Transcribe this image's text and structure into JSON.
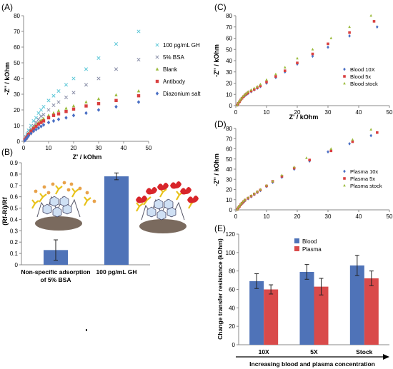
{
  "panels": {
    "A": "(A)",
    "B": "(B)",
    "C": "(C)",
    "D": "(D)",
    "E": "(E)"
  },
  "colors": {
    "blue": "#4a6fc4",
    "red": "#d94040",
    "green": "#9bbb3c",
    "gray": "#8a8fa8",
    "cyan": "#5ec8d8",
    "bar_blue": "#4f73b8",
    "bar_red": "#d94a4a"
  },
  "chart_data": [
    {
      "id": "A",
      "type": "scatter",
      "xlabel": "Z' / kOhm",
      "ylabel": "-Z'' / kOhm",
      "xlim": [
        0,
        50
      ],
      "ylim": [
        0,
        80
      ],
      "xticks": [
        "0",
        "10",
        "20",
        "30",
        "40",
        "50"
      ],
      "yticks": [
        "0",
        "10",
        "20",
        "30",
        "40",
        "50",
        "60",
        "70",
        "80"
      ],
      "legend_position": "right",
      "series": [
        {
          "name": "100 pg/mL GH",
          "marker": "x",
          "color": "#5ec8d8",
          "x": [
            0.5,
            1,
            1.5,
            2,
            3,
            4,
            5,
            6,
            7,
            8,
            10,
            12,
            14,
            17,
            20,
            25,
            30,
            37,
            46
          ],
          "y": [
            1,
            3,
            5,
            7,
            10,
            13,
            15,
            18,
            20,
            22,
            26,
            29,
            32,
            36,
            40,
            46,
            53,
            62,
            70
          ]
        },
        {
          "name": "5% BSA",
          "marker": "x",
          "color": "#8a8fa8",
          "x": [
            0.5,
            1,
            1.5,
            2,
            3,
            4,
            5,
            6,
            7,
            8,
            10,
            12,
            14,
            17,
            20,
            25,
            30,
            37,
            46
          ],
          "y": [
            1,
            2.5,
            4,
            5.5,
            8,
            10,
            12,
            14,
            16,
            17,
            20,
            23,
            25,
            28,
            31,
            36,
            40,
            46,
            52
          ]
        },
        {
          "name": "Blank",
          "marker": "triangle",
          "color": "#9bbb3c",
          "x": [
            0.5,
            1,
            1.5,
            2,
            3,
            4,
            5,
            6,
            7,
            8,
            10,
            12,
            14,
            17,
            20,
            25,
            30,
            37,
            46
          ],
          "y": [
            1,
            2,
            3.5,
            5,
            7,
            9,
            10.5,
            12,
            13.5,
            14.5,
            16.5,
            18,
            19.5,
            21,
            22.5,
            25,
            27,
            29.5,
            32
          ]
        },
        {
          "name": "Antibody",
          "marker": "square",
          "color": "#d94040",
          "x": [
            0.5,
            1,
            1.5,
            2,
            3,
            4,
            5,
            6,
            7,
            8,
            10,
            12,
            14,
            17,
            20,
            25,
            30,
            37,
            46
          ],
          "y": [
            1,
            2,
            3,
            4.5,
            6.5,
            8,
            9.5,
            11,
            12,
            13,
            15,
            16.5,
            17.5,
            19,
            20.5,
            22.5,
            24,
            26,
            29
          ]
        },
        {
          "name": "Diazonium salt",
          "marker": "diamond",
          "color": "#4a6fc4",
          "x": [
            0.5,
            1,
            1.5,
            2,
            3,
            4,
            5,
            6,
            7,
            8,
            10,
            12,
            14,
            17,
            20,
            25,
            30,
            37,
            46
          ],
          "y": [
            0.5,
            1.5,
            2.5,
            3.5,
            5,
            6.5,
            7.5,
            8.5,
            9.5,
            10.5,
            12,
            13,
            14,
            15,
            16.5,
            18,
            20,
            22,
            25
          ]
        }
      ]
    },
    {
      "id": "B",
      "type": "bar",
      "ylabel": "(Rf-Ri)/Rf",
      "ylim": [
        0,
        0.9
      ],
      "yticks": [
        "0",
        "0.1",
        "0.2",
        "0.3",
        "0.4",
        "0.5",
        "0.6",
        "0.7",
        "0.8",
        "0.9"
      ],
      "categories": [
        "Non-specific adsorption of 5% BSA",
        "100 pg/mL GH"
      ],
      "category_lines": [
        [
          "Non-specific adsorption",
          "of 5% BSA"
        ],
        [
          "100 pg/mL GH"
        ]
      ],
      "values": [
        0.13,
        0.78
      ],
      "errors": [
        0.09,
        0.03
      ]
    },
    {
      "id": "C",
      "type": "scatter",
      "xlabel": "Z' / kOhm",
      "ylabel": "-Z'' / kOhm",
      "xlim": [
        0,
        50
      ],
      "ylim": [
        0,
        80
      ],
      "xticks": [
        "0",
        "10",
        "20",
        "30",
        "40",
        "50"
      ],
      "yticks": [
        "0",
        "10",
        "20",
        "30",
        "40",
        "50",
        "60",
        "70",
        "80"
      ],
      "legend_position": "right",
      "series": [
        {
          "name": "Blood 10X",
          "marker": "diamond",
          "color": "#4a6fc4",
          "x": [
            0.5,
            0.8,
            1.2,
            1.6,
            2,
            2.5,
            3,
            3.5,
            4,
            5,
            6,
            7,
            8,
            10,
            13,
            16,
            20,
            25,
            30,
            37,
            46
          ],
          "y": [
            0.5,
            2,
            3.5,
            5,
            6.5,
            8,
            9,
            10,
            11,
            12.5,
            14,
            15.5,
            17,
            20,
            25,
            30,
            37,
            44,
            52,
            62,
            70
          ]
        },
        {
          "name": "Blood 5x",
          "marker": "square",
          "color": "#d94040",
          "x": [
            0.5,
            0.8,
            1.2,
            1.6,
            2,
            2.5,
            3,
            3.5,
            4,
            5,
            6,
            7,
            8,
            10,
            13,
            16,
            20,
            25,
            30,
            37,
            45
          ],
          "y": [
            0.5,
            2,
            3.5,
            5,
            6.5,
            8,
            9.5,
            10.5,
            11.5,
            13,
            14.5,
            16,
            17.5,
            21,
            26,
            31,
            38,
            46,
            55,
            65,
            75
          ]
        },
        {
          "name": "Blood stock",
          "marker": "triangle",
          "color": "#9bbb3c",
          "x": [
            0.5,
            0.8,
            1.2,
            1.6,
            2,
            2.5,
            3,
            3.5,
            4,
            5,
            6,
            7,
            8,
            10,
            13,
            16,
            20,
            25,
            31,
            37,
            44
          ],
          "y": [
            0.5,
            2.5,
            4,
            5.5,
            7,
            8.5,
            10,
            11,
            12.5,
            14,
            15.5,
            17,
            19,
            23,
            28,
            34,
            42,
            50,
            60,
            70,
            80
          ]
        }
      ]
    },
    {
      "id": "D",
      "type": "scatter",
      "xlabel": "Z' / kOhm",
      "ylabel": "-Z'' / kOhm",
      "xlim": [
        0,
        50
      ],
      "ylim": [
        0,
        80
      ],
      "xticks": [
        "0",
        "10",
        "20",
        "30",
        "40",
        "50"
      ],
      "yticks": [
        "0",
        "10",
        "20",
        "30",
        "40",
        "50",
        "60",
        "70",
        "80"
      ],
      "legend_position": "right",
      "series": [
        {
          "name": "Plasma 10x",
          "marker": "diamond",
          "color": "#4a6fc4",
          "x": [
            0.5,
            0.8,
            1.2,
            1.6,
            2,
            2.5,
            3,
            4,
            5,
            6,
            7,
            8,
            10,
            12,
            15,
            19,
            24,
            30,
            37,
            44
          ],
          "y": [
            0.5,
            2,
            3.5,
            5,
            6,
            7.5,
            9,
            11,
            13,
            15,
            17,
            19,
            23,
            27,
            32,
            40,
            48,
            57,
            65,
            73
          ]
        },
        {
          "name": "Plasma 5x",
          "marker": "square",
          "color": "#d94040",
          "x": [
            0.5,
            0.8,
            1.2,
            1.6,
            2,
            2.5,
            3,
            4,
            5,
            6,
            7,
            8,
            10,
            12,
            15,
            19,
            24,
            31,
            38,
            46
          ],
          "y": [
            0.5,
            2,
            3.5,
            5,
            6.5,
            8,
            9.5,
            11.5,
            13.5,
            15.5,
            17.5,
            19.5,
            23.5,
            28,
            33,
            41,
            49,
            58,
            67,
            76
          ]
        },
        {
          "name": "Plasma stock",
          "marker": "triangle",
          "color": "#9bbb3c",
          "x": [
            0.5,
            0.8,
            1.2,
            1.6,
            2,
            2.5,
            3,
            4,
            5,
            6,
            7,
            8,
            10,
            12,
            15,
            19,
            23,
            31,
            38,
            44
          ],
          "y": [
            0.5,
            2.5,
            4,
            5.5,
            7,
            8.5,
            10,
            12,
            14,
            16,
            18,
            20,
            24,
            28,
            34,
            42,
            51,
            60,
            69,
            79
          ]
        }
      ]
    },
    {
      "id": "E",
      "type": "bar",
      "ylabel": "Change transfer resistance (kOhm)",
      "ylim": [
        0,
        120
      ],
      "yticks": [
        "0",
        "20",
        "40",
        "60",
        "80",
        "100",
        "120"
      ],
      "categories": [
        "10X",
        "5X",
        "Stock"
      ],
      "legend_position": "top-center",
      "series": [
        {
          "name": "Blood",
          "color": "#4f73b8",
          "values": [
            69,
            79,
            86
          ],
          "errors": [
            8,
            8,
            11
          ]
        },
        {
          "name": "Plasma",
          "color": "#d94a4a",
          "values": [
            60,
            63,
            72
          ],
          "errors": [
            5,
            9,
            8
          ]
        }
      ],
      "annotation": "Increasing blood and plasma concentration"
    }
  ]
}
